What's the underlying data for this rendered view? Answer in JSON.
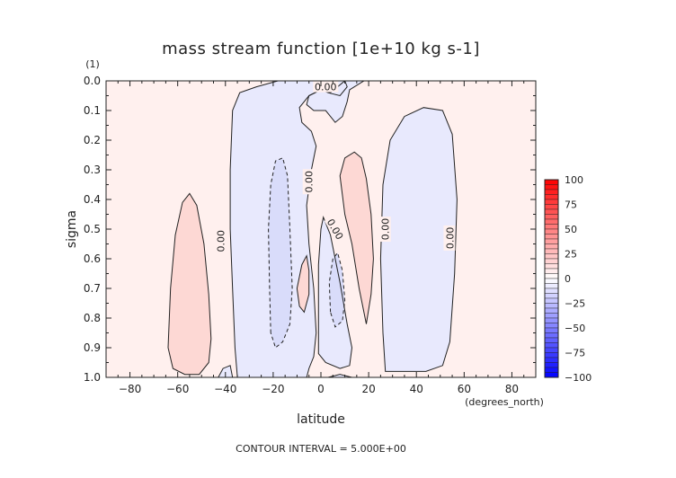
{
  "chart_data": {
    "type": "contour",
    "title": "mass stream function [1e+10 kg s-1]",
    "xlabel": "latitude",
    "ylabel": "sigma",
    "x_units": "(degrees_north)",
    "y_units": "(1)",
    "xlim": [
      -90,
      90
    ],
    "ylim": [
      1.0,
      0.0
    ],
    "x_ticks": [
      -80,
      -60,
      -40,
      -20,
      0,
      20,
      40,
      60,
      80
    ],
    "y_ticks": [
      0.0,
      0.1,
      0.2,
      0.3,
      0.4,
      0.5,
      0.6,
      0.7,
      0.8,
      0.9,
      1.0
    ],
    "footer": "CONTOUR INTERVAL = 5.000E+00",
    "contour_interval": 5.0,
    "contour_labels": [
      "0.00",
      "0.00",
      "0.00",
      "0.00",
      "0.00",
      "0.00"
    ],
    "colorbar": {
      "ticks": [
        100,
        75,
        50,
        25,
        0,
        -25,
        -50,
        -75,
        -100
      ],
      "min": -100,
      "max": 100,
      "low_color": "#0000ff",
      "high_color": "#ff0000",
      "mid_color": "#ffffff"
    },
    "fill_colors": {
      "background_positive": "#fff0ee",
      "positive_cell": "#fdd8d4",
      "negative_region": "#e8e9fd",
      "negative_cell": "#d9dcfa"
    },
    "features": [
      {
        "sign": "positive",
        "lat": [
          -64,
          -46
        ],
        "sigma": [
          0.38,
          1.0
        ]
      },
      {
        "sign": "negative",
        "lat": [
          -35,
          0
        ],
        "sigma": [
          0.0,
          1.0
        ]
      },
      {
        "sign": "negative",
        "lat": [
          -22,
          -10
        ],
        "sigma": [
          0.26,
          0.9
        ]
      },
      {
        "sign": "positive",
        "lat": [
          -10,
          -3
        ],
        "sigma": [
          0.6,
          0.78
        ]
      },
      {
        "sign": "negative",
        "lat": [
          -1,
          13
        ],
        "sigma": [
          0.46,
          1.0
        ]
      },
      {
        "sign": "negative",
        "lat": [
          3,
          10
        ],
        "sigma": [
          0.58,
          0.83
        ]
      },
      {
        "sign": "positive",
        "lat": [
          7,
          22
        ],
        "sigma": [
          0.24,
          0.82
        ]
      },
      {
        "sign": "negative",
        "lat": [
          25,
          57
        ],
        "sigma": [
          0.09,
          0.98
        ]
      },
      {
        "sign": "negative",
        "lat": [
          -8,
          20
        ],
        "sigma": [
          0.0,
          0.14
        ]
      }
    ]
  }
}
